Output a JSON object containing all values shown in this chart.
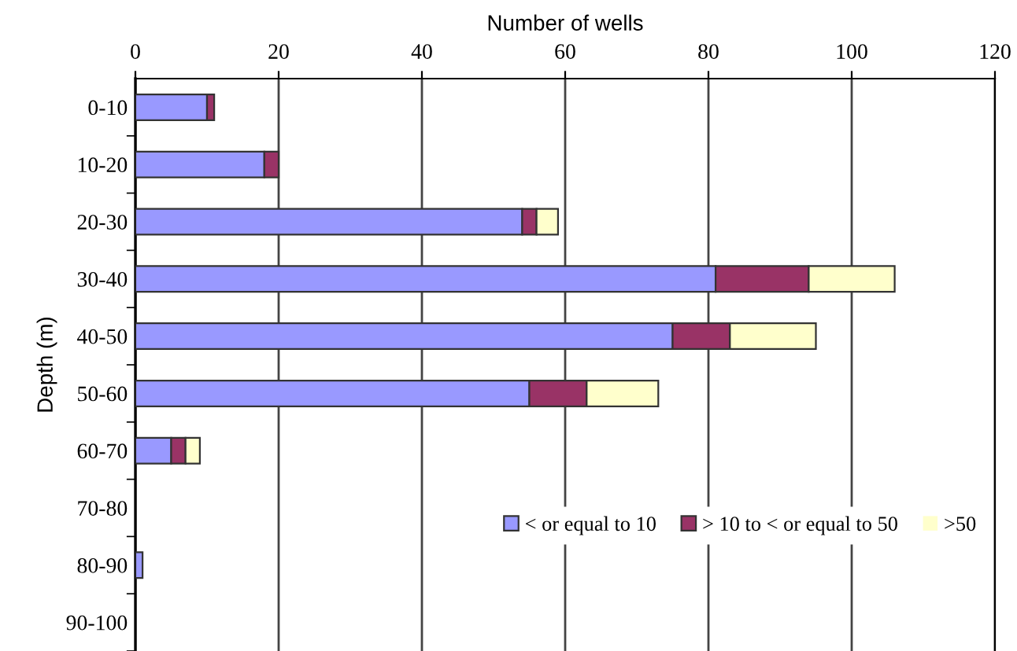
{
  "chart_data": {
    "type": "bar",
    "orientation": "horizontal",
    "stacked": true,
    "xlabel": "Number of wells",
    "ylabel": "Depth (m)",
    "categories": [
      "0-10",
      "10-20",
      "20-30",
      "30-40",
      "40-50",
      "50-60",
      "60-70",
      "70-80",
      "80-90",
      "90-100"
    ],
    "series": [
      {
        "name": "< or equal to 10",
        "color": "#9999ff",
        "values": [
          10,
          18,
          54,
          81,
          75,
          55,
          5,
          0,
          1,
          0
        ]
      },
      {
        "name": "> 10 to < or equal to 50",
        "color": "#993366",
        "values": [
          1,
          2,
          2,
          13,
          8,
          8,
          2,
          0,
          0,
          0
        ]
      },
      {
        "name": ">50",
        "color": "#ffffcc",
        "values": [
          0,
          0,
          3,
          12,
          12,
          10,
          2,
          0,
          0,
          0
        ]
      }
    ],
    "xlim": [
      0,
      120
    ],
    "xticks": [
      0,
      20,
      40,
      60,
      80,
      100,
      120
    ],
    "grid": "x",
    "legend": "bottom right"
  }
}
